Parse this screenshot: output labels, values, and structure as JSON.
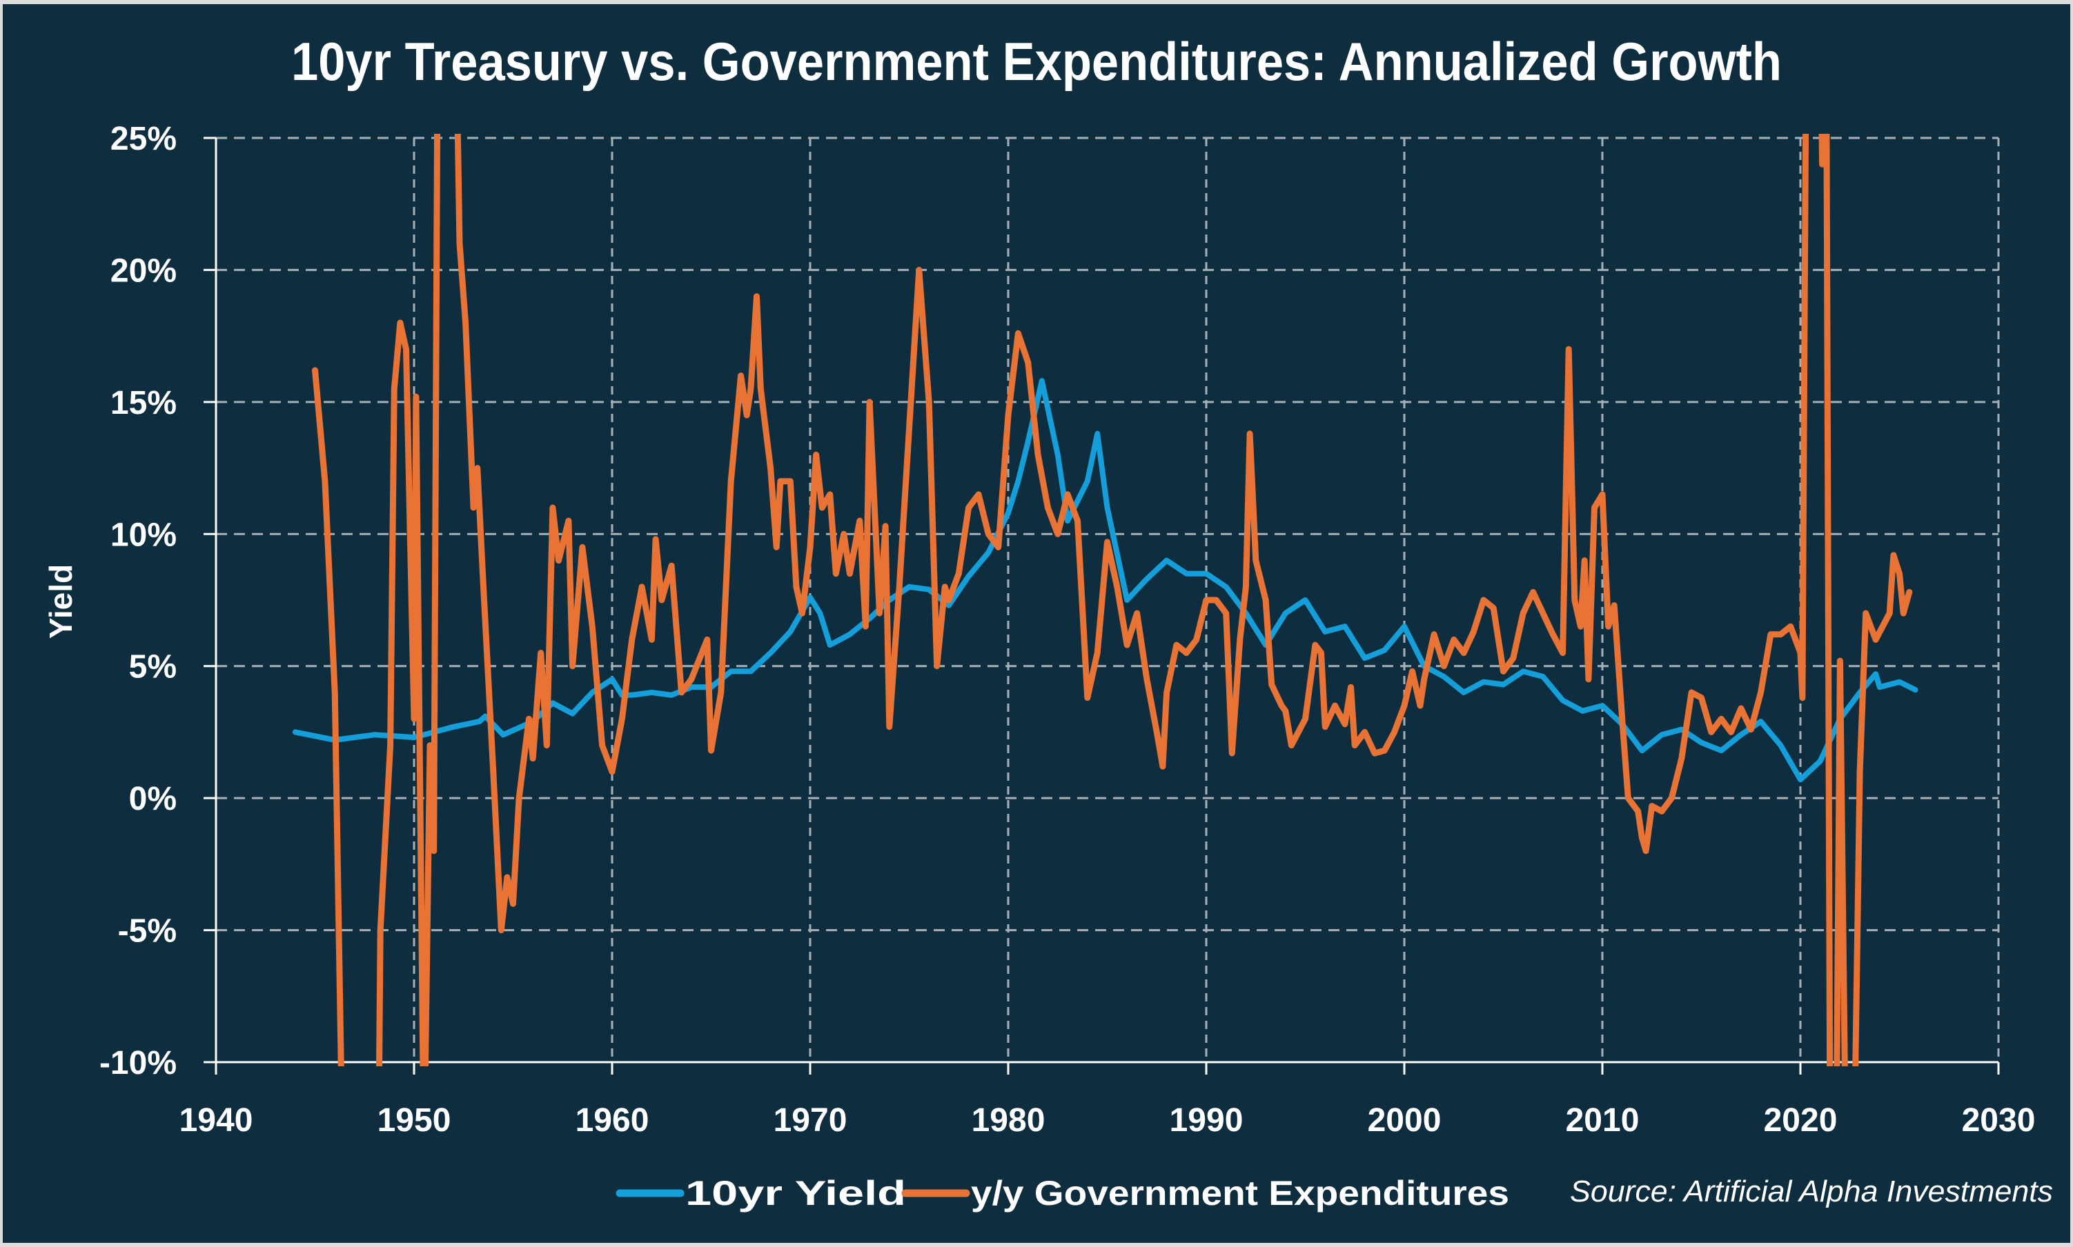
{
  "chart_data": {
    "type": "line",
    "title": "10yr Treasury vs. Government Expenditures: Annualized Growth",
    "xlabel": "",
    "ylabel": "Yield",
    "xlim": [
      1940,
      2030
    ],
    "ylim": [
      -10,
      25
    ],
    "x_ticks": [
      1940,
      1950,
      1960,
      1970,
      1980,
      1990,
      2000,
      2010,
      2020,
      2030
    ],
    "x_tick_labels": [
      "1940",
      "1950",
      "1960",
      "1970",
      "1980",
      "1990",
      "2000",
      "2010",
      "2020",
      "2030"
    ],
    "y_ticks": [
      -10,
      -5,
      0,
      5,
      10,
      15,
      20,
      25
    ],
    "y_tick_labels": [
      "-10%",
      "-5%",
      "0%",
      "5%",
      "10%",
      "15%",
      "20%",
      "25%"
    ],
    "grid": true,
    "legend_position": "bottom",
    "source": "Source: Artificial Alpha Investments",
    "colors": {
      "background": "#0e2e40",
      "grid": "#a9b0b5",
      "axis": "#ffffff"
    },
    "series": [
      {
        "name": "10yr Yield",
        "color": "#159fda",
        "x": [
          1944,
          1946,
          1948,
          1950,
          1952,
          1953.3,
          1953.6,
          1954.5,
          1956,
          1957,
          1958,
          1959,
          1960,
          1960.5,
          1961,
          1962,
          1963,
          1964,
          1965,
          1966,
          1967,
          1968,
          1969,
          1970,
          1970.5,
          1971,
          1972,
          1973,
          1974,
          1975,
          1976,
          1977,
          1978,
          1979,
          1980,
          1980.5,
          1981,
          1981.7,
          1982.5,
          1983,
          1984,
          1984.5,
          1985,
          1986,
          1987,
          1988,
          1989,
          1990,
          1991,
          1992,
          1993,
          1994,
          1995,
          1996,
          1997,
          1998,
          1999,
          2000,
          2001,
          2002,
          2003,
          2004,
          2005,
          2006,
          2007,
          2008,
          2009,
          2010,
          2011,
          2012,
          2013,
          2014,
          2015,
          2016,
          2017,
          2018,
          2019,
          2020,
          2021,
          2022,
          2023,
          2023.8,
          2024,
          2025,
          2025.8
        ],
        "values": [
          2.5,
          2.2,
          2.4,
          2.3,
          2.7,
          2.9,
          3.1,
          2.4,
          2.9,
          3.6,
          3.2,
          4.0,
          4.5,
          3.9,
          3.9,
          4.0,
          3.9,
          4.2,
          4.2,
          4.8,
          4.8,
          5.5,
          6.3,
          7.6,
          7.0,
          5.8,
          6.2,
          6.8,
          7.5,
          8.0,
          7.9,
          7.3,
          8.4,
          9.3,
          10.8,
          12.0,
          13.5,
          15.8,
          13.0,
          10.5,
          12.0,
          13.8,
          11.0,
          7.5,
          8.3,
          9.0,
          8.5,
          8.5,
          8.0,
          7.0,
          5.8,
          7.0,
          7.5,
          6.3,
          6.5,
          5.3,
          5.6,
          6.5,
          5.0,
          4.6,
          4.0,
          4.4,
          4.3,
          4.8,
          4.6,
          3.7,
          3.3,
          3.5,
          2.8,
          1.8,
          2.4,
          2.6,
          2.1,
          1.8,
          2.4,
          2.9,
          2.0,
          0.7,
          1.4,
          3.0,
          4.0,
          4.7,
          4.2,
          4.4,
          4.1
        ]
      },
      {
        "name": "y/y Government Expenditures",
        "color": "#e97334",
        "x": [
          1945,
          1945.5,
          1946,
          1946.4,
          1948.2,
          1948.3,
          1948.8,
          1949,
          1949.3,
          1949.6,
          1950,
          1950.1,
          1950.5,
          1950.8,
          1951,
          1951.2,
          1952.1,
          1952.3,
          1952.6,
          1953,
          1953.2,
          1953.5,
          1954,
          1954.4,
          1954.7,
          1955,
          1955.3,
          1955.8,
          1956,
          1956.4,
          1956.7,
          1957,
          1957.3,
          1957.8,
          1958,
          1958.5,
          1959,
          1959.5,
          1960,
          1960.5,
          1961,
          1961.5,
          1962,
          1962.2,
          1962.5,
          1963,
          1963.5,
          1964,
          1964.8,
          1965,
          1965.5,
          1966,
          1966.5,
          1966.8,
          1967,
          1967.3,
          1967.5,
          1968,
          1968.3,
          1968.5,
          1969,
          1969.3,
          1969.6,
          1970,
          1970.3,
          1970.6,
          1971,
          1971.3,
          1971.7,
          1972,
          1972.5,
          1972.8,
          1973,
          1973.5,
          1973.8,
          1974,
          1974.5,
          1975,
          1975.5,
          1976,
          1976.4,
          1976.8,
          1977,
          1977.5,
          1978,
          1978.5,
          1979,
          1979.5,
          1980,
          1980.5,
          1981,
          1981.5,
          1982,
          1982.5,
          1983,
          1983.5,
          1984,
          1984.5,
          1985,
          1985.5,
          1986,
          1986.5,
          1987,
          1987.5,
          1987.8,
          1988,
          1988.5,
          1989,
          1989.5,
          1990,
          1990.5,
          1991,
          1991.3,
          1991.7,
          1992,
          1992.2,
          1992.5,
          1993,
          1993.3,
          1993.8,
          1994,
          1994.3,
          1995,
          1995.5,
          1995.8,
          1996,
          1996.5,
          1997,
          1997.3,
          1997.5,
          1998,
          1998.5,
          1999,
          1999.5,
          2000,
          2000.4,
          2000.8,
          2001,
          2001.5,
          2002,
          2002.5,
          2003,
          2003.5,
          2004,
          2004.5,
          2005,
          2005.5,
          2006,
          2006.5,
          2007,
          2007.5,
          2008,
          2008.3,
          2008.6,
          2008.9,
          2009.1,
          2009.3,
          2009.6,
          2010,
          2010.3,
          2010.6,
          2011,
          2011.3,
          2011.8,
          2012,
          2012.2,
          2012.5,
          2013,
          2013.5,
          2014,
          2014.5,
          2015,
          2015.5,
          2016,
          2016.5,
          2017,
          2017.5,
          2018,
          2018.5,
          2019,
          2019.5,
          2020,
          2020.1,
          2020.3,
          2021,
          2021.1,
          2021.3,
          2021.5,
          2021.8,
          2022,
          2022.3,
          2022.7,
          2023,
          2023.3,
          2023.8,
          2024.5,
          2024.7,
          2025,
          2025.2,
          2025.5
        ],
        "values": [
          16.2,
          12,
          4,
          -14,
          -14,
          -5,
          2,
          15.5,
          18,
          17,
          3,
          15.2,
          -14,
          2,
          -2,
          30,
          30,
          21,
          18,
          11,
          12.5,
          8,
          1,
          -5,
          -3,
          -4,
          0,
          3,
          1.5,
          5.5,
          2,
          11,
          9,
          10.5,
          5,
          9.5,
          6.5,
          2,
          1,
          3,
          6,
          8,
          6,
          9.8,
          7.5,
          8.8,
          4,
          4.5,
          6,
          1.8,
          4,
          12,
          16,
          14.5,
          15.5,
          19,
          15.5,
          12.5,
          9.5,
          12,
          12,
          8,
          7,
          9.5,
          13,
          11,
          11.5,
          8.5,
          10,
          8.5,
          10.5,
          6.5,
          15,
          7,
          10.3,
          2.7,
          8,
          14,
          20,
          15,
          5,
          8,
          7.5,
          8.5,
          11,
          11.5,
          10,
          9.5,
          14.5,
          17.6,
          16.5,
          13,
          11,
          10,
          11.5,
          10.5,
          3.8,
          5.5,
          9.7,
          8,
          5.8,
          7,
          4.5,
          2.5,
          1.2,
          4,
          5.8,
          5.5,
          6,
          7.5,
          7.5,
          7,
          1.7,
          6,
          8,
          13.8,
          9,
          7.5,
          4.3,
          3.5,
          3.3,
          2,
          3,
          5.8,
          5.5,
          2.7,
          3.5,
          2.8,
          4.2,
          2,
          2.5,
          1.7,
          1.8,
          2.5,
          3.5,
          4.8,
          3.5,
          4.5,
          6.2,
          5,
          6,
          5.5,
          6.3,
          7.5,
          7.2,
          4.8,
          5.3,
          7,
          7.8,
          7,
          6.2,
          5.5,
          17,
          7.5,
          6.5,
          9,
          4.5,
          11,
          11.5,
          6.5,
          7.3,
          3,
          0,
          -0.5,
          -1.5,
          -2,
          -0.3,
          -0.5,
          0,
          1.5,
          4,
          3.8,
          2.5,
          3,
          2.5,
          3.4,
          2.6,
          4,
          6.2,
          6.2,
          6.5,
          5.5,
          3.8,
          30,
          30,
          24,
          30,
          -14,
          -14,
          5.2,
          -14,
          -14,
          1,
          7,
          6,
          7,
          9.2,
          8.5,
          7,
          7.8
        ]
      }
    ]
  }
}
